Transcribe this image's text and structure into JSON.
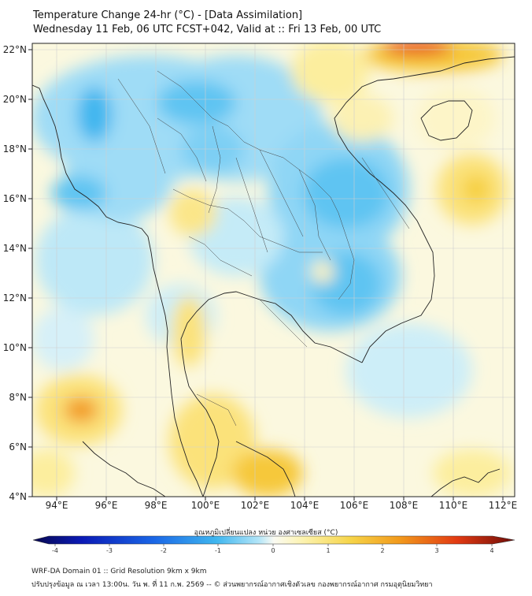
{
  "header": {
    "title": "Temperature Change 24-hr (°C) - [Data Assimilation]",
    "subtitle": "Wednesday 11 Feb, 06 UTC FCST+042, Valid at :: Fri 13 Feb, 00 UTC"
  },
  "map": {
    "lon_range": [
      93,
      112.5
    ],
    "lat_range": [
      4,
      22.2
    ],
    "lon_ticks": [
      "94°E",
      "96°E",
      "98°E",
      "100°E",
      "102°E",
      "104°E",
      "106°E",
      "108°E",
      "110°E",
      "112°E"
    ],
    "lat_ticks": [
      "4°N",
      "6°N",
      "8°N",
      "10°N",
      "12°N",
      "14°N",
      "16°N",
      "18°N",
      "20°N",
      "22°N"
    ]
  },
  "colorbar": {
    "title": "อุณหภูมิเปลี่ยนแปลง หน่วย องศาเซลเซียส (°C)",
    "ticks": [
      "-4",
      "-3",
      "-2",
      "-1",
      "0",
      "1",
      "2",
      "3",
      "4"
    ],
    "range": [
      -4,
      4
    ]
  },
  "footer": {
    "line1": "WRF-DA Domain 01 :: Grid Resolution 9km x 9km",
    "line2": "ปรับปรุงข้อมูล ณ เวลา 13:00น. วัน พ. ที่ 11 ก.พ. 2569 -- © ส่วนพยากรณ์อากาศเชิงตัวเลข กองพยากรณ์อากาศ กรมอุตุนิยมวิทยา"
  },
  "colors": {
    "cold_strong": "#0a2fd6",
    "cold": "#3fb6ef",
    "cold_light": "#9fdcf6",
    "neutral": "#fbfbf3",
    "warm_light": "#fbf1a6",
    "warm": "#f6c83a",
    "warm_strong": "#e8401a"
  }
}
